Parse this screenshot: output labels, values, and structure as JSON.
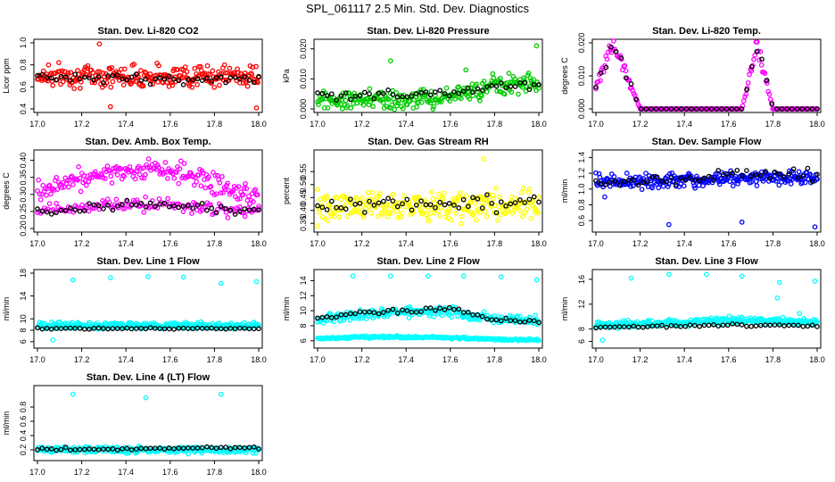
{
  "figure": {
    "title": "SPL_061117  2.5 Min. Std. Dev. Diagnostics"
  },
  "colors": {
    "black": "#000000",
    "red": "#ff0000",
    "green": "#00cc00",
    "magenta": "#ff00ff",
    "yellow": "#ffff00",
    "blue": "#0000ff",
    "cyan": "#00ffff"
  },
  "chart_data": [
    {
      "id": "co2",
      "type": "scatter",
      "title": "Stan. Dev. Li-820 CO2",
      "ylabel": "Licor ppm",
      "xlim": [
        17.0,
        18.0
      ],
      "ylim": [
        0.4,
        1.0
      ],
      "xticks": [
        "17.0",
        "17.2",
        "17.4",
        "17.6",
        "17.8",
        "18.0"
      ],
      "yticks": [
        "0.4",
        "0.6",
        "0.8",
        "1.0"
      ],
      "series": [
        {
          "name": "raw",
          "color": "red",
          "n": 260,
          "base": [
            0.7
          ],
          "spread": 0.08,
          "outliers": [
            [
              17.28,
              0.99
            ],
            [
              17.33,
              0.42
            ],
            [
              17.99,
              0.41
            ],
            [
              17.05,
              0.8
            ]
          ]
        },
        {
          "name": "average",
          "color": "black",
          "n": 48,
          "base": [
            0.68
          ],
          "spread": 0.04
        }
      ]
    },
    {
      "id": "pressure",
      "type": "scatter",
      "title": "Stan. Dev. Li-820 Pressure",
      "ylabel": "kPa",
      "xlim": [
        17.0,
        18.0
      ],
      "ylim": [
        0.0,
        0.022
      ],
      "xticks": [
        "17.0",
        "17.2",
        "17.4",
        "17.6",
        "17.8",
        "18.0"
      ],
      "yticks": [
        "0.000",
        "0.010",
        "0.020"
      ],
      "series": [
        {
          "name": "raw",
          "color": "green",
          "n": 260,
          "base": [
            0.003,
            0.003,
            0.003,
            0.004,
            0.008,
            0.009
          ],
          "spread": 0.0025,
          "outliers": [
            [
              17.33,
              0.016
            ],
            [
              17.67,
              0.013
            ],
            [
              17.99,
              0.021
            ]
          ]
        },
        {
          "name": "average",
          "color": "black",
          "n": 48,
          "base": [
            0.0045,
            0.0045,
            0.0045,
            0.005,
            0.007,
            0.008
          ],
          "spread": 0.0012
        }
      ]
    },
    {
      "id": "temp",
      "type": "scatter",
      "title": "Stan. Dev. Li-820 Temp.",
      "ylabel": "degrees C",
      "xlim": [
        17.0,
        18.0
      ],
      "ylim": [
        0.0,
        0.02
      ],
      "xticks": [
        "17.0",
        "17.2",
        "17.4",
        "17.6",
        "17.8",
        "18.0"
      ],
      "yticks": [
        "0.000",
        "0.010",
        "0.020"
      ],
      "series": [
        {
          "name": "raw",
          "color": "magenta",
          "n": 200,
          "base": [
            0.0
          ],
          "spread": 0.0,
          "shape": "twin-peaks"
        },
        {
          "name": "average",
          "color": "black",
          "n": 45,
          "base": [
            0.0
          ],
          "spread": 0.0,
          "shape": "twin-peaks"
        }
      ]
    },
    {
      "id": "ambbox",
      "type": "scatter",
      "title": "Stan. Dev. Amb. Box Temp.",
      "ylabel": "degrees C",
      "xlim": [
        17.0,
        18.0
      ],
      "ylim": [
        0.2,
        0.42
      ],
      "xticks": [
        "17.0",
        "17.2",
        "17.4",
        "17.6",
        "17.8",
        "18.0"
      ],
      "yticks": [
        "0.20",
        "0.25",
        "0.30",
        "0.35",
        "0.40"
      ],
      "series": [
        {
          "name": "raw-upper",
          "color": "magenta",
          "n": 200,
          "base": [
            0.31,
            0.35,
            0.37,
            0.37,
            0.33,
            0.29
          ],
          "spread": 0.025
        },
        {
          "name": "raw-lower",
          "color": "magenta",
          "n": 130,
          "base": [
            0.25,
            0.26,
            0.27,
            0.27,
            0.26,
            0.25
          ],
          "spread": 0.015
        },
        {
          "name": "average",
          "color": "black",
          "n": 48,
          "base": [
            0.25,
            0.26,
            0.27,
            0.27,
            0.26,
            0.25
          ],
          "spread": 0.01
        }
      ]
    },
    {
      "id": "rh",
      "type": "scatter",
      "title": "Stan. Dev. Gas Stream RH",
      "ylabel": "percent",
      "xlim": [
        17.0,
        18.0
      ],
      "ylim": [
        0.33,
        0.62
      ],
      "xticks": [
        "17.0",
        "17.2",
        "17.4",
        "17.6",
        "17.8",
        "18.0"
      ],
      "yticks": [
        "0.35",
        "0.40",
        "0.45",
        "0.50",
        "0.55"
      ],
      "series": [
        {
          "name": "raw",
          "color": "yellow",
          "n": 260,
          "base": [
            0.42
          ],
          "spread": 0.045,
          "outliers": [
            [
              17.0,
              0.34
            ],
            [
              17.75,
              0.6
            ]
          ]
        },
        {
          "name": "average",
          "color": "black",
          "n": 48,
          "base": [
            0.42
          ],
          "spread": 0.03
        }
      ]
    },
    {
      "id": "sample",
      "type": "scatter",
      "title": "Stan. Dev. Sample Flow",
      "ylabel": "ml/min",
      "xlim": [
        17.0,
        18.0
      ],
      "ylim": [
        0.5,
        1.45
      ],
      "xticks": [
        "17.0",
        "17.2",
        "17.4",
        "17.6",
        "17.8",
        "18.0"
      ],
      "yticks": [
        "0.6",
        "0.8",
        "1.0",
        "1.2",
        "1.4"
      ],
      "series": [
        {
          "name": "raw",
          "color": "blue",
          "n": 280,
          "base": [
            1.1,
            1.1,
            1.12,
            1.13,
            1.15,
            1.15
          ],
          "spread": 0.07,
          "outliers": [
            [
              17.33,
              0.55
            ],
            [
              17.66,
              0.58
            ],
            [
              17.99,
              0.52
            ],
            [
              17.04,
              0.9
            ]
          ]
        },
        {
          "name": "average",
          "color": "black",
          "n": 48,
          "base": [
            1.1,
            1.1,
            1.14,
            1.16,
            1.18,
            1.18
          ],
          "spread": 0.06
        }
      ]
    },
    {
      "id": "line1",
      "type": "scatter",
      "title": "Stan. Dev. Line 1 Flow",
      "ylabel": "ml/min",
      "xlim": [
        17.0,
        18.0
      ],
      "ylim": [
        5.5,
        18.0
      ],
      "xticks": [
        "17.0",
        "17.2",
        "17.4",
        "17.6",
        "17.8",
        "18.0"
      ],
      "yticks": [
        "6",
        "8",
        "10",
        "14",
        "18"
      ],
      "series": [
        {
          "name": "raw",
          "color": "cyan",
          "n": 300,
          "base": [
            8.8
          ],
          "spread": 0.45,
          "outliers": [
            [
              17.16,
              16.8
            ],
            [
              17.33,
              17.2
            ],
            [
              17.5,
              17.4
            ],
            [
              17.66,
              17.3
            ],
            [
              17.83,
              16.2
            ],
            [
              17.99,
              16.5
            ],
            [
              17.07,
              6.3
            ]
          ]
        },
        {
          "name": "average",
          "color": "black",
          "n": 48,
          "base": [
            8.3
          ],
          "spread": 0.1
        }
      ]
    },
    {
      "id": "line2",
      "type": "scatter",
      "title": "Stan. Dev. Line 2 Flow",
      "ylabel": "ml/min",
      "xlim": [
        17.0,
        18.0
      ],
      "ylim": [
        5.5,
        15.0
      ],
      "xticks": [
        "17.0",
        "17.2",
        "17.4",
        "17.6",
        "17.8",
        "18.0"
      ],
      "yticks": [
        "6",
        "8",
        "10",
        "12",
        "14"
      ],
      "series": [
        {
          "name": "raw-upper",
          "color": "cyan",
          "n": 260,
          "base": [
            8.8,
            9.5,
            9.9,
            9.9,
            8.9,
            8.6
          ],
          "spread": 0.5,
          "outliers": [
            [
              17.16,
              14.6
            ],
            [
              17.33,
              14.6
            ],
            [
              17.5,
              14.6
            ],
            [
              17.66,
              14.6
            ],
            [
              17.83,
              14.5
            ],
            [
              17.99,
              14.1
            ]
          ]
        },
        {
          "name": "raw-lower",
          "color": "cyan",
          "n": 240,
          "base": [
            6.3,
            6.5,
            6.5,
            6.4,
            6.2,
            6.1
          ],
          "spread": 0.12
        },
        {
          "name": "average",
          "color": "black",
          "n": 48,
          "base": [
            9.0,
            9.7,
            10.0,
            10.3,
            8.8,
            8.6
          ],
          "spread": 0.25
        }
      ]
    },
    {
      "id": "line3",
      "type": "scatter",
      "title": "Stan. Dev. Line 3 Flow",
      "ylabel": "ml/min",
      "xlim": [
        17.0,
        18.0
      ],
      "ylim": [
        5.5,
        17.0
      ],
      "xticks": [
        "17.0",
        "17.2",
        "17.4",
        "17.6",
        "17.8",
        "18.0"
      ],
      "yticks": [
        "6",
        "8",
        "12",
        "16"
      ],
      "series": [
        {
          "name": "raw",
          "color": "cyan",
          "n": 300,
          "base": [
            8.6,
            8.8,
            9.1,
            9.4,
            9.3,
            9.0
          ],
          "spread": 0.45,
          "outliers": [
            [
              17.16,
              16.2
            ],
            [
              17.33,
              16.8
            ],
            [
              17.5,
              16.8
            ],
            [
              17.66,
              16.5
            ],
            [
              17.83,
              15.5
            ],
            [
              17.99,
              15.7
            ],
            [
              17.03,
              6.2
            ],
            [
              17.82,
              13.0
            ],
            [
              17.92,
              10.5
            ]
          ]
        },
        {
          "name": "average",
          "color": "black",
          "n": 48,
          "base": [
            8.3,
            8.4,
            8.5,
            8.6,
            8.6,
            8.5
          ],
          "spread": 0.15
        }
      ]
    },
    {
      "id": "line4",
      "type": "scatter",
      "title": "Stan. Dev. Line 4 (LT) Flow",
      "ylabel": "ml/min",
      "xlim": [
        17.0,
        18.0
      ],
      "ylim": [
        0.1,
        1.05
      ],
      "xticks": [
        "17.0",
        "17.2",
        "17.4",
        "17.6",
        "17.8",
        "18.0"
      ],
      "yticks": [
        "0.2",
        "0.4",
        "0.6",
        "0.8"
      ],
      "series": [
        {
          "name": "raw",
          "color": "cyan",
          "n": 300,
          "base": [
            0.2
          ],
          "spread": 0.035,
          "outliers": [
            [
              17.16,
              0.98
            ],
            [
              17.49,
              0.93
            ],
            [
              17.83,
              0.98
            ]
          ]
        },
        {
          "name": "average",
          "color": "black",
          "n": 48,
          "base": [
            0.21,
            0.21,
            0.21,
            0.22,
            0.23,
            0.23
          ],
          "spread": 0.015
        }
      ]
    }
  ]
}
